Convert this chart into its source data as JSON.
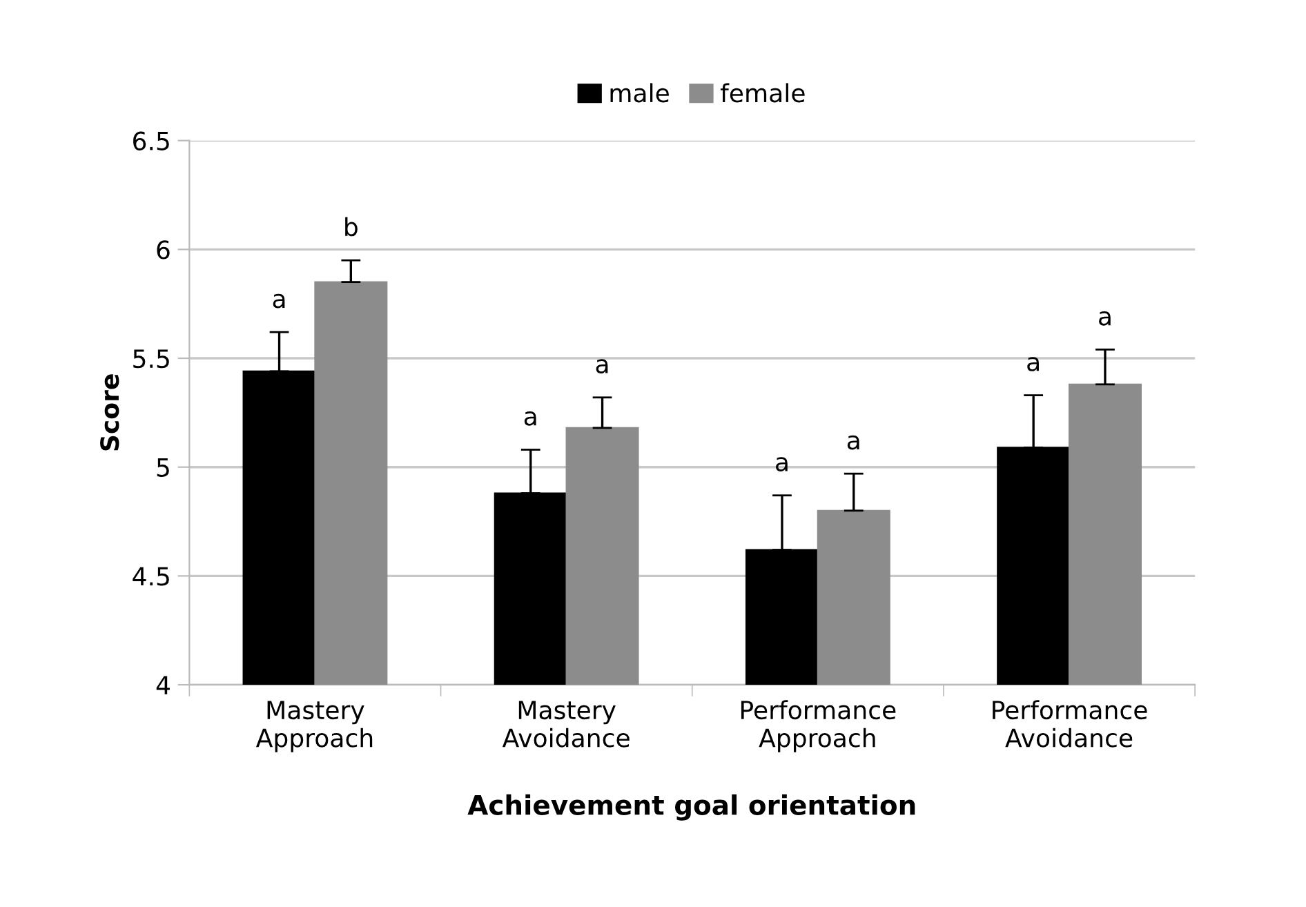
{
  "chart_data": {
    "type": "bar",
    "xlabel": "Achievement goal orientation",
    "ylabel": "Score",
    "categories": [
      "Mastery\nApproach",
      "Mastery\nAvoidance",
      "Performance\nApproach",
      "Performance\nAvoidance"
    ],
    "series": [
      {
        "name": "male",
        "color": "#000000",
        "values": [
          5.44,
          4.88,
          4.62,
          5.09
        ],
        "errors": [
          0.18,
          0.2,
          0.25,
          0.24
        ],
        "value_labels": [
          "a",
          "a",
          "a",
          "a"
        ]
      },
      {
        "name": "female",
        "color": "#8c8c8c",
        "values": [
          5.85,
          5.18,
          4.8,
          5.38
        ],
        "errors": [
          0.1,
          0.14,
          0.17,
          0.16
        ],
        "value_labels": [
          "b",
          "a",
          "a",
          "a"
        ]
      }
    ],
    "ylim": [
      4,
      6.5
    ],
    "yticks": [
      4,
      4.5,
      5,
      5.5,
      6,
      6.5
    ],
    "grid": "y",
    "legend": "top"
  }
}
